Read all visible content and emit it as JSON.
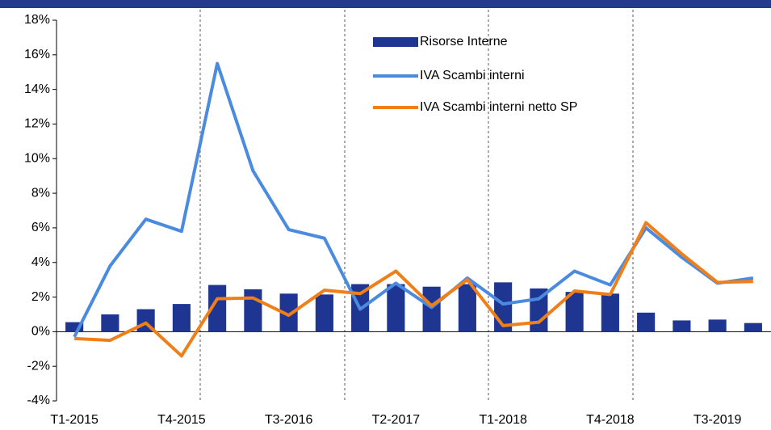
{
  "chart_data": {
    "type": "bar_line",
    "categories": [
      "T1-2015",
      null,
      null,
      "T4-2015",
      null,
      null,
      "T3-2016",
      null,
      null,
      "T2-2017",
      null,
      null,
      "T1-2018",
      null,
      null,
      "T4-2018",
      null,
      null,
      "T3-2019",
      null
    ],
    "series": [
      {
        "name": "Risorse Interne",
        "type": "bar",
        "color": "#1f3592",
        "values": [
          0.55,
          1.0,
          1.3,
          1.6,
          2.7,
          2.45,
          2.2,
          2.15,
          2.75,
          2.75,
          2.6,
          2.75,
          2.85,
          2.5,
          2.3,
          2.2,
          1.1,
          0.65,
          0.7,
          0.5
        ]
      },
      {
        "name": "IVA Scambi interni",
        "type": "line",
        "color": "#4a8be0",
        "values": [
          -0.3,
          3.8,
          6.5,
          5.8,
          15.5,
          9.3,
          5.9,
          5.4,
          1.3,
          2.8,
          1.4,
          3.1,
          1.6,
          1.9,
          3.5,
          2.7,
          6.0,
          4.3,
          2.8,
          3.1
        ]
      },
      {
        "name": "IVA Scambi interni netto SP",
        "type": "line",
        "color": "#f07f1a",
        "values": [
          -0.4,
          -0.5,
          0.5,
          -1.4,
          1.9,
          1.95,
          0.95,
          2.4,
          2.2,
          3.5,
          1.5,
          3.0,
          0.35,
          0.55,
          2.35,
          2.15,
          6.3,
          4.5,
          2.85,
          2.9
        ]
      }
    ],
    "ylim": [
      -4,
      18
    ],
    "yticks": [
      {
        "value": -4,
        "label": "-4%"
      },
      {
        "value": -2,
        "label": "-2%"
      },
      {
        "value": 0,
        "label": "0%"
      },
      {
        "value": 2,
        "label": "2%"
      },
      {
        "value": 4,
        "label": "4%"
      },
      {
        "value": 6,
        "label": "6%"
      },
      {
        "value": 8,
        "label": "8%"
      },
      {
        "value": 10,
        "label": "10%"
      },
      {
        "value": 12,
        "label": "12%"
      },
      {
        "value": 14,
        "label": "14%"
      },
      {
        "value": 16,
        "label": "16%"
      },
      {
        "value": 18,
        "label": "18%"
      }
    ],
    "legend": "top"
  }
}
